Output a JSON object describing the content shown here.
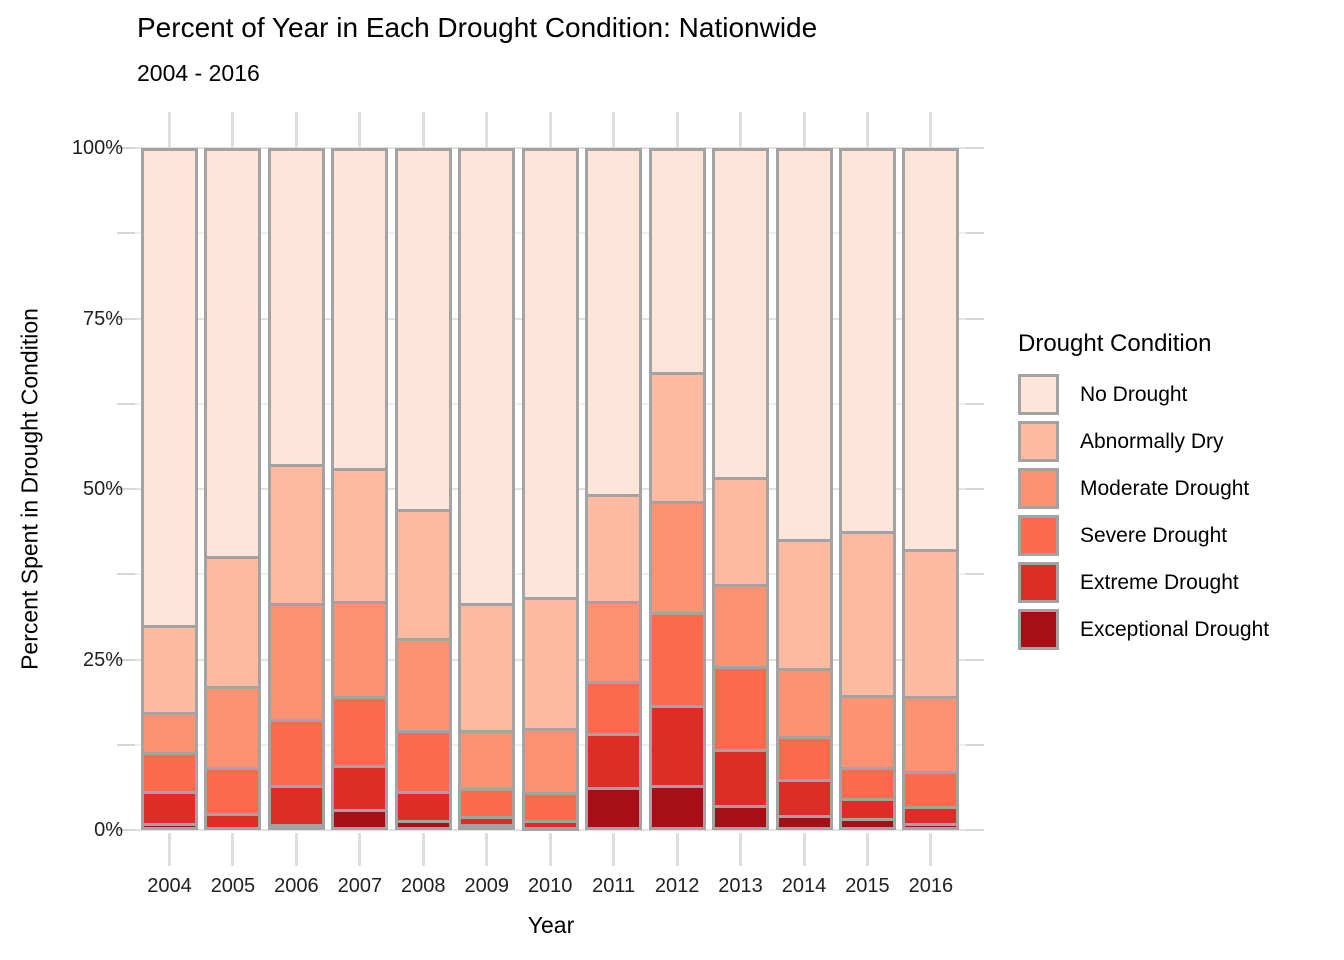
{
  "title": "Percent of Year in Each Drought Condition: Nationwide",
  "subtitle": "2004 - 2016",
  "x_axis": {
    "title": "Year",
    "categories": [
      "2004",
      "2005",
      "2006",
      "2007",
      "2008",
      "2009",
      "2010",
      "2011",
      "2012",
      "2013",
      "2014",
      "2015",
      "2016"
    ]
  },
  "y_axis": {
    "title": "Percent Spent in Drought Condition",
    "tick_labels": [
      "0%",
      "25%",
      "50%",
      "75%",
      "100%"
    ],
    "tick_values": [
      0,
      25,
      50,
      75,
      100
    ],
    "minor_step": 12.5,
    "range": [
      0,
      100
    ]
  },
  "legend": {
    "title": "Drought Condition",
    "items": [
      {
        "label": "No Drought",
        "color": "#fee5d9"
      },
      {
        "label": "Abnormally Dry",
        "color": "#fcbba1"
      },
      {
        "label": "Moderate Drought",
        "color": "#fc9272"
      },
      {
        "label": "Severe Drought",
        "color": "#fb6a4a"
      },
      {
        "label": "Extreme Drought",
        "color": "#de2d26"
      },
      {
        "label": "Exceptional Drought",
        "color": "#a50f15"
      }
    ]
  },
  "chart_data": {
    "type": "bar",
    "stacked": true,
    "unit": "percent of year",
    "categories": [
      "2004",
      "2005",
      "2006",
      "2007",
      "2008",
      "2009",
      "2010",
      "2011",
      "2012",
      "2013",
      "2014",
      "2015",
      "2016"
    ],
    "stack_order_bottom_to_top": [
      "Exceptional Drought",
      "Extreme Drought",
      "Severe Drought",
      "Moderate Drought",
      "Abnormally Dry",
      "No Drought"
    ],
    "series": [
      {
        "name": "No Drought",
        "color": "#fee5d9",
        "values": [
          70.2,
          60.0,
          46.6,
          47.1,
          53.1,
          67.0,
          66.1,
          50.9,
          33.0,
          48.5,
          57.6,
          56.4,
          59.0
        ]
      },
      {
        "name": "Abnormally Dry",
        "color": "#fcbba1",
        "values": [
          12.7,
          19.1,
          20.4,
          19.6,
          19.0,
          18.6,
          19.1,
          15.7,
          19.0,
          15.7,
          18.8,
          24.0,
          21.5
        ]
      },
      {
        "name": "Moderate Drought",
        "color": "#fc9272",
        "values": [
          5.9,
          11.9,
          17.0,
          13.9,
          13.5,
          8.4,
          9.5,
          11.8,
          16.3,
          11.9,
          10.1,
          10.6,
          11.0
        ]
      },
      {
        "name": "Severe Drought",
        "color": "#fb6a4a",
        "values": [
          5.7,
          6.8,
          9.6,
          10.1,
          8.9,
          4.2,
          4.1,
          7.6,
          13.6,
          12.3,
          6.3,
          4.5,
          5.2
        ]
      },
      {
        "name": "Extreme Drought",
        "color": "#de2d26",
        "values": [
          4.7,
          2.0,
          5.7,
          6.5,
          4.2,
          1.1,
          1.1,
          7.9,
          11.7,
          8.2,
          5.2,
          2.9,
          2.5
        ]
      },
      {
        "name": "Exceptional Drought",
        "color": "#a50f15",
        "values": [
          0.8,
          0.2,
          0.7,
          2.8,
          1.3,
          0.7,
          0.1,
          6.1,
          6.4,
          3.4,
          2.0,
          1.6,
          0.8
        ]
      }
    ],
    "title": "Percent of Year in Each Drought Condition: Nationwide",
    "subtitle": "2004 - 2016",
    "xlabel": "Year",
    "ylabel": "Percent Spent in Drought Condition",
    "ylim": [
      0,
      100
    ],
    "grid": true,
    "legend_position": "right",
    "bar_outline_color": "#a3a3a3"
  }
}
